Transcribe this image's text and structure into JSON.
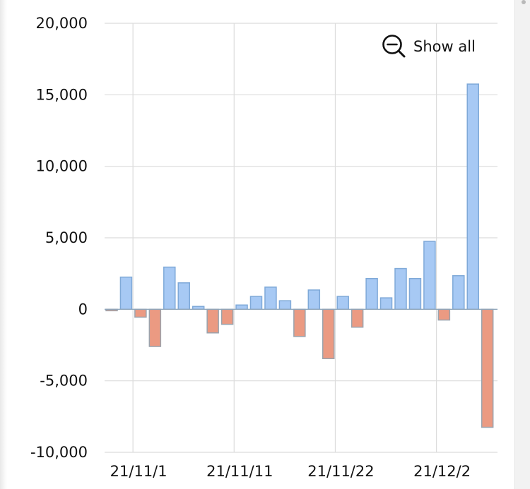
{
  "zoom_control": {
    "label": "Show all",
    "icon": "zoom-out-icon"
  },
  "colors": {
    "positive_bar": "#a7c9f4",
    "negative_bar": "#eb9a82",
    "grid": "#dcdcdc"
  },
  "chart_data": {
    "type": "bar",
    "title": "",
    "xlabel": "",
    "ylabel": "",
    "ylim": [
      -10000,
      20000
    ],
    "yticks": [
      20000,
      15000,
      10000,
      5000,
      0,
      -5000,
      -10000
    ],
    "ytick_labels": [
      "20,000",
      "15,000",
      "10,000",
      "5,000",
      "0",
      "-5,000",
      "-10,000"
    ],
    "xtick_labels": [
      "21/11/1",
      "21/11/11",
      "21/11/22",
      "21/12/2"
    ],
    "xtick_bar_index": [
      1.45,
      8.45,
      15.45,
      22.45
    ],
    "grid": true,
    "values": [
      -100,
      2250,
      -550,
      -2600,
      2950,
      1850,
      200,
      -1650,
      -1050,
      300,
      900,
      1550,
      600,
      -1900,
      1350,
      -3450,
      900,
      -1250,
      2150,
      800,
      2850,
      2150,
      4750,
      -750,
      2350,
      15750,
      -8250
    ]
  }
}
